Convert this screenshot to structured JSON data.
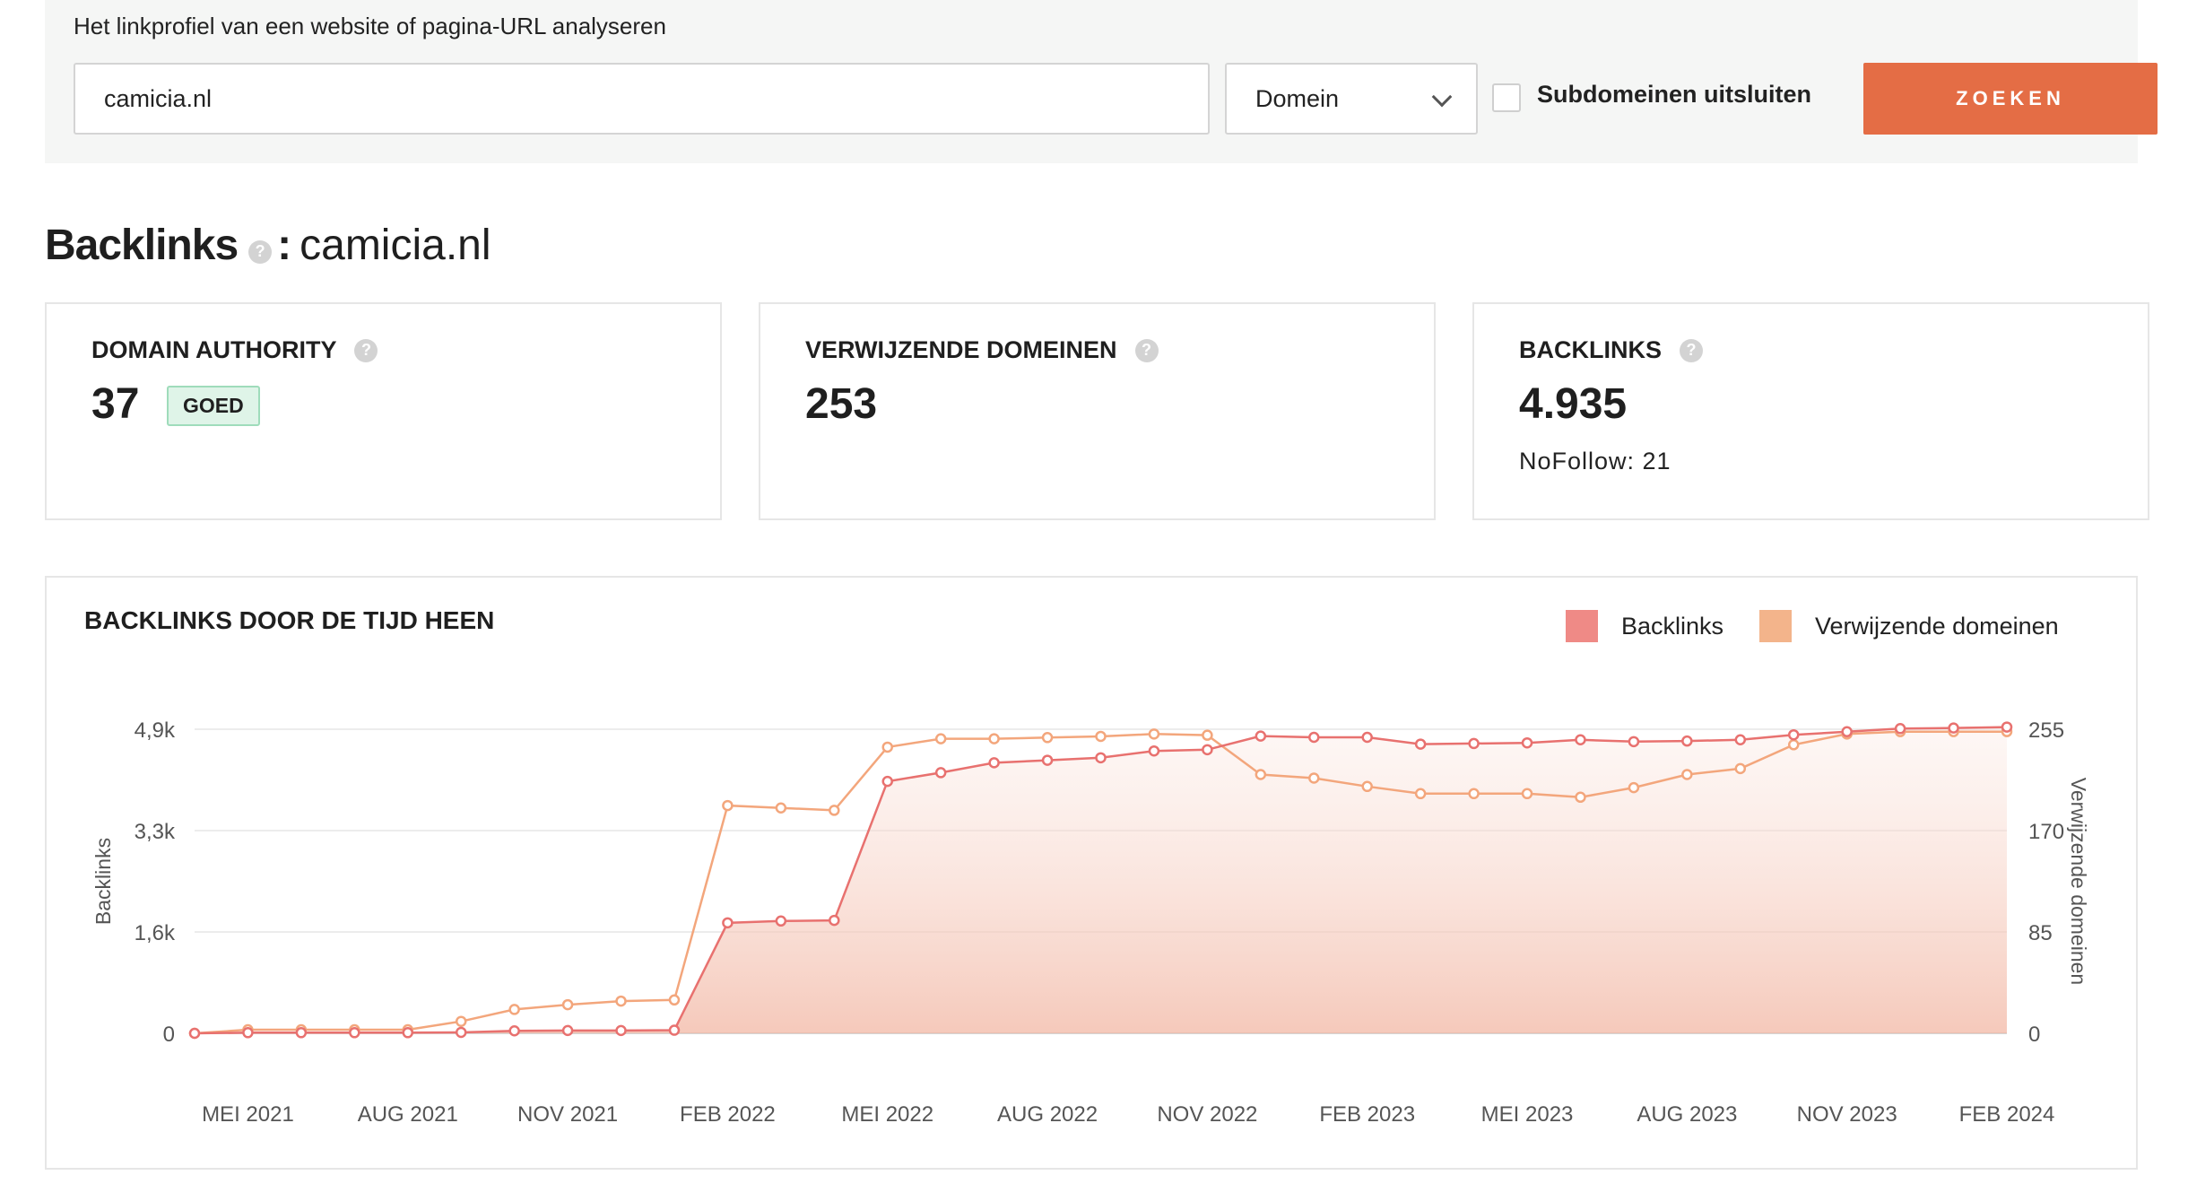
{
  "search": {
    "heading": "Het linkprofiel van een website of pagina-URL analyseren",
    "input_value": "camicia.nl",
    "scope_selected": "Domein",
    "exclude_subdomains_label": "Subdomeinen uitsluiten",
    "exclude_subdomains_checked": false,
    "button_label": "ZOEKEN",
    "button_color": "#e46d45"
  },
  "page_title": {
    "prefix": "Backlinks",
    "separator": ":",
    "domain": "camicia.nl",
    "help": "?"
  },
  "stats": [
    {
      "label": "DOMAIN AUTHORITY",
      "value": "37",
      "badge": "GOED",
      "help": "?"
    },
    {
      "label": "VERWIJZENDE DOMEINEN",
      "value": "253",
      "help": "?"
    },
    {
      "label": "BACKLINKS",
      "value": "4.935",
      "sub": "NoFollow: 21",
      "help": "?"
    }
  ],
  "chart": {
    "title": "BACKLINKS DOOR DE TIJD HEEN",
    "legend": [
      {
        "label": "Backlinks",
        "color": "#ef8a86"
      },
      {
        "label": "Verwijzende domeinen",
        "color": "#f3b48b"
      }
    ]
  },
  "chart_data": {
    "type": "line",
    "title": "BACKLINKS DOOR DE TIJD HEEN",
    "xlabel": "",
    "ylabel": "Backlinks",
    "y2label": "Verwijzende domeinen",
    "x_tick_labels": [
      "MEI 2021",
      "AUG 2021",
      "NOV 2021",
      "FEB 2022",
      "MEI 2022",
      "AUG 2022",
      "NOV 2022",
      "FEB 2023",
      "MEI 2023",
      "AUG 2023",
      "NOV 2023",
      "FEB 2024"
    ],
    "y_tick_labels": [
      "0",
      "1,6k",
      "3,3k",
      "4,9k"
    ],
    "y_ticks": [
      0,
      1633,
      3267,
      4900
    ],
    "y_range": [
      0,
      4900
    ],
    "y2_tick_labels": [
      "0",
      "85",
      "170",
      "255"
    ],
    "y2_ticks": [
      0,
      85,
      170,
      255
    ],
    "y2_range": [
      0,
      255
    ],
    "grid": true,
    "legend_position": "top-right",
    "x": [
      "2021-04",
      "2021-05",
      "2021-06",
      "2021-07",
      "2021-08",
      "2021-09",
      "2021-10",
      "2021-11",
      "2021-12",
      "2022-01",
      "2022-02",
      "2022-03",
      "2022-04",
      "2022-05",
      "2022-06",
      "2022-07",
      "2022-08",
      "2022-09",
      "2022-10",
      "2022-11",
      "2022-12",
      "2023-01",
      "2023-02",
      "2023-03",
      "2023-04",
      "2023-05",
      "2023-06",
      "2023-07",
      "2023-08",
      "2023-09",
      "2023-10",
      "2023-11",
      "2023-12",
      "2024-01",
      "2024-02"
    ],
    "series": [
      {
        "name": "Backlinks",
        "axis": "left",
        "color": "#e8716f",
        "values": [
          0,
          10,
          10,
          10,
          10,
          15,
          40,
          45,
          45,
          50,
          1780,
          1810,
          1820,
          4060,
          4200,
          4360,
          4400,
          4440,
          4550,
          4570,
          4790,
          4770,
          4770,
          4660,
          4670,
          4680,
          4730,
          4700,
          4710,
          4730,
          4810,
          4860,
          4910,
          4920,
          4935
        ]
      },
      {
        "name": "Verwijzende domeinen",
        "axis": "right",
        "color": "#f3a67c",
        "values": [
          0,
          3,
          3,
          3,
          3,
          10,
          20,
          24,
          27,
          28,
          191,
          189,
          187,
          240,
          247,
          247,
          248,
          249,
          251,
          250,
          217,
          214,
          207,
          201,
          201,
          201,
          198,
          206,
          217,
          222,
          242,
          251,
          253,
          253,
          253
        ]
      }
    ]
  }
}
